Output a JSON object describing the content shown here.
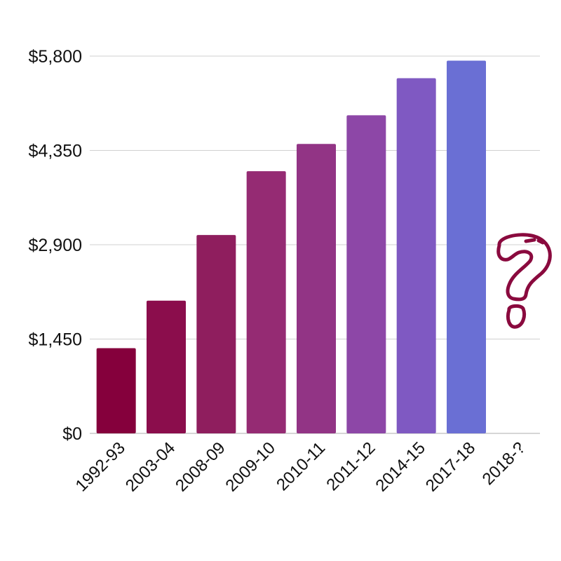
{
  "chart_data": {
    "type": "bar",
    "title": "",
    "xlabel": "",
    "ylabel": "",
    "categories": [
      "1992-93",
      "2003-04",
      "2008-09",
      "2009-10",
      "2010-11",
      "2011-12",
      "2014-15",
      "2017-18",
      "2018-?"
    ],
    "values": [
      1310,
      2040,
      3050,
      4030,
      4450,
      4890,
      5460,
      5730,
      null
    ],
    "bar_colors": [
      "#85003c",
      "#8b0d4c",
      "#8f1e5e",
      "#952b73",
      "#923485",
      "#8d47a7",
      "#7f59c2",
      "#6a6fd4",
      null
    ],
    "ylim": [
      0,
      5800
    ],
    "yticks": [
      0,
      1450,
      2900,
      4350,
      5800
    ],
    "ytick_labels": [
      "$0",
      "$1,450",
      "$2,900",
      "$4,350",
      "$5,800"
    ],
    "grid": true,
    "legend": "none",
    "annotation_icon": "question-mark-icon",
    "annotation_color": "#8a0a3e"
  }
}
